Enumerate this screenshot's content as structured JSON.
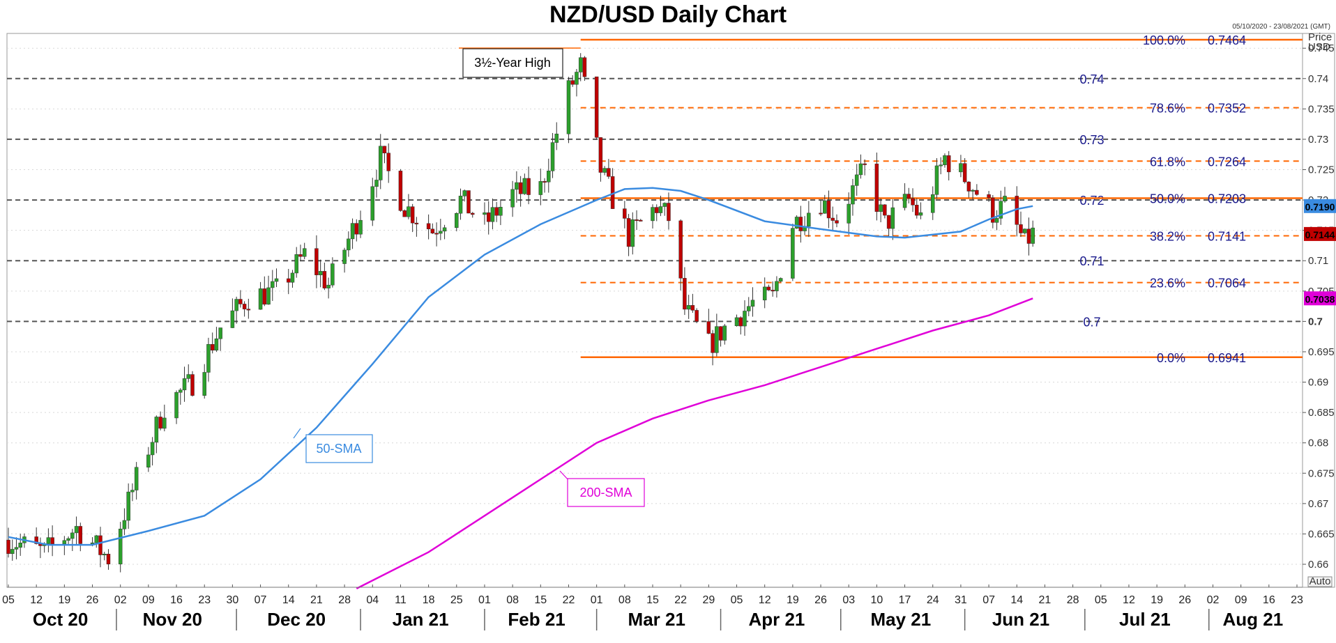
{
  "title": "NZD/USD Daily Chart",
  "date_range": "05/10/2020 - 23/08/2021 (GMT)",
  "axis_unit": [
    "Price",
    "USD"
  ],
  "auto_label": "Auto",
  "colors": {
    "up_candle": "#2ca02c",
    "down_candle": "#c00000",
    "sma50": "#3a8be0",
    "sma200": "#e000d8",
    "fib_line": "#ff6600",
    "level_line": "#555555",
    "level_text": "#1a1a8c"
  },
  "chart_data": {
    "type": "candlestick",
    "title": "NZD/USD Daily Chart",
    "ylim": [
      0.6565,
      0.7495
    ],
    "y_ticks": [
      0.66,
      0.665,
      0.67,
      0.675,
      0.68,
      0.685,
      0.69,
      0.695,
      0.7,
      0.705,
      0.71,
      0.715,
      0.72,
      0.725,
      0.73,
      0.735,
      0.74,
      0.745
    ],
    "y_tick_labels": [
      "0.66",
      "0.665",
      "0.67",
      "0.675",
      "0.68",
      "0.685",
      "0.69",
      "0.695",
      "0.7",
      "0.705",
      "0.71",
      "0.715",
      "0.72",
      "0.725",
      "0.73",
      "0.735",
      "0.74",
      "0.745"
    ],
    "x_range": [
      "2020-10-05",
      "2021-08-23"
    ],
    "day_ticks": [
      {
        "label": "05",
        "date": "2020-10-05"
      },
      {
        "label": "12",
        "date": "2020-10-12"
      },
      {
        "label": "19",
        "date": "2020-10-19"
      },
      {
        "label": "26",
        "date": "2020-10-26"
      },
      {
        "label": "02",
        "date": "2020-11-02"
      },
      {
        "label": "09",
        "date": "2020-11-09"
      },
      {
        "label": "16",
        "date": "2020-11-16"
      },
      {
        "label": "23",
        "date": "2020-11-23"
      },
      {
        "label": "30",
        "date": "2020-11-30"
      },
      {
        "label": "07",
        "date": "2020-12-07"
      },
      {
        "label": "14",
        "date": "2020-12-14"
      },
      {
        "label": "21",
        "date": "2020-12-21"
      },
      {
        "label": "28",
        "date": "2020-12-28"
      },
      {
        "label": "04",
        "date": "2021-01-04"
      },
      {
        "label": "11",
        "date": "2021-01-11"
      },
      {
        "label": "18",
        "date": "2021-01-18"
      },
      {
        "label": "25",
        "date": "2021-01-25"
      },
      {
        "label": "01",
        "date": "2021-02-01"
      },
      {
        "label": "08",
        "date": "2021-02-08"
      },
      {
        "label": "15",
        "date": "2021-02-15"
      },
      {
        "label": "22",
        "date": "2021-02-22"
      },
      {
        "label": "01",
        "date": "2021-03-01"
      },
      {
        "label": "08",
        "date": "2021-03-08"
      },
      {
        "label": "15",
        "date": "2021-03-15"
      },
      {
        "label": "22",
        "date": "2021-03-22"
      },
      {
        "label": "29",
        "date": "2021-03-29"
      },
      {
        "label": "05",
        "date": "2021-04-05"
      },
      {
        "label": "12",
        "date": "2021-04-12"
      },
      {
        "label": "19",
        "date": "2021-04-19"
      },
      {
        "label": "26",
        "date": "2021-04-26"
      },
      {
        "label": "03",
        "date": "2021-05-03"
      },
      {
        "label": "10",
        "date": "2021-05-10"
      },
      {
        "label": "17",
        "date": "2021-05-17"
      },
      {
        "label": "24",
        "date": "2021-05-24"
      },
      {
        "label": "31",
        "date": "2021-05-31"
      },
      {
        "label": "07",
        "date": "2021-06-07"
      },
      {
        "label": "14",
        "date": "2021-06-14"
      },
      {
        "label": "21",
        "date": "2021-06-21"
      },
      {
        "label": "28",
        "date": "2021-06-28"
      },
      {
        "label": "05",
        "date": "2021-07-05"
      },
      {
        "label": "12",
        "date": "2021-07-12"
      },
      {
        "label": "19",
        "date": "2021-07-19"
      },
      {
        "label": "26",
        "date": "2021-07-26"
      },
      {
        "label": "02",
        "date": "2021-08-02"
      },
      {
        "label": "09",
        "date": "2021-08-09"
      },
      {
        "label": "16",
        "date": "2021-08-16"
      },
      {
        "label": "23",
        "date": "2021-08-23"
      }
    ],
    "months": [
      {
        "label": "Oct 20",
        "date": "2020-10-18"
      },
      {
        "label": "Nov 20",
        "date": "2020-11-15"
      },
      {
        "label": "Dec 20",
        "date": "2020-12-16"
      },
      {
        "label": "Jan 21",
        "date": "2021-01-16"
      },
      {
        "label": "Feb 21",
        "date": "2021-02-14"
      },
      {
        "label": "Mar 21",
        "date": "2021-03-16"
      },
      {
        "label": "Apr 21",
        "date": "2021-04-15"
      },
      {
        "label": "May 21",
        "date": "2021-05-16"
      },
      {
        "label": "Jun 21",
        "date": "2021-06-15"
      },
      {
        "label": "Jul 21",
        "date": "2021-07-16"
      },
      {
        "label": "Aug 21",
        "date": "2021-08-12"
      }
    ],
    "month_separators": [
      "2020-11-01",
      "2020-12-01",
      "2021-01-01",
      "2021-02-01",
      "2021-03-01",
      "2021-04-01",
      "2021-05-01",
      "2021-06-01",
      "2021-07-01",
      "2021-08-01"
    ],
    "price_path": [
      [
        "2020-10-05",
        0.664
      ],
      [
        "2020-10-14",
        0.662
      ],
      [
        "2020-10-22",
        0.666
      ],
      [
        "2020-10-30",
        0.661
      ],
      [
        "2020-11-06",
        0.674
      ],
      [
        "2020-11-13",
        0.686
      ],
      [
        "2020-11-20",
        0.69
      ],
      [
        "2020-11-27",
        0.699
      ],
      [
        "2020-12-04",
        0.704
      ],
      [
        "2020-12-11",
        0.705
      ],
      [
        "2020-12-18",
        0.711
      ],
      [
        "2020-12-24",
        0.706
      ],
      [
        "2021-01-01",
        0.718
      ],
      [
        "2021-01-06",
        0.727
      ],
      [
        "2021-01-12",
        0.719
      ],
      [
        "2021-01-19",
        0.715
      ],
      [
        "2021-01-26",
        0.72
      ],
      [
        "2021-02-01",
        0.716
      ],
      [
        "2021-02-08",
        0.721
      ],
      [
        "2021-02-15",
        0.722
      ],
      [
        "2021-02-22",
        0.738
      ],
      [
        "2021-02-25",
        0.742
      ],
      [
        "2021-03-02",
        0.725
      ],
      [
        "2021-03-09",
        0.714
      ],
      [
        "2021-03-16",
        0.719
      ],
      [
        "2021-03-19",
        0.717
      ],
      [
        "2021-03-23",
        0.702
      ],
      [
        "2021-03-29",
        0.696
      ],
      [
        "2021-04-02",
        0.699
      ],
      [
        "2021-04-09",
        0.703
      ],
      [
        "2021-04-14",
        0.704
      ],
      [
        "2021-04-19",
        0.716
      ],
      [
        "2021-04-26",
        0.72
      ],
      [
        "2021-04-30",
        0.717
      ],
      [
        "2021-05-07",
        0.725
      ],
      [
        "2021-05-12",
        0.716
      ],
      [
        "2021-05-18",
        0.72
      ],
      [
        "2021-05-21",
        0.717
      ],
      [
        "2021-05-27",
        0.727
      ],
      [
        "2021-06-02",
        0.723
      ],
      [
        "2021-06-08",
        0.718
      ],
      [
        "2021-06-11",
        0.719
      ],
      [
        "2021-06-16",
        0.713
      ],
      [
        "2021-06-18",
        0.7144
      ]
    ],
    "series": [
      {
        "name": "50-SMA",
        "points": [
          [
            "2020-10-05",
            0.6645
          ],
          [
            "2020-10-15",
            0.6632
          ],
          [
            "2020-10-26",
            0.6632
          ],
          [
            "2020-11-09",
            0.6655
          ],
          [
            "2020-11-23",
            0.668
          ],
          [
            "2020-12-07",
            0.674
          ],
          [
            "2020-12-21",
            0.6825
          ],
          [
            "2021-01-04",
            0.693
          ],
          [
            "2021-01-18",
            0.704
          ],
          [
            "2021-02-01",
            0.711
          ],
          [
            "2021-02-15",
            0.716
          ],
          [
            "2021-03-01",
            0.72
          ],
          [
            "2021-03-08",
            0.7218
          ],
          [
            "2021-03-15",
            0.722
          ],
          [
            "2021-03-22",
            0.7215
          ],
          [
            "2021-03-29",
            0.72
          ],
          [
            "2021-04-12",
            0.7165
          ],
          [
            "2021-04-26",
            0.7152
          ],
          [
            "2021-05-10",
            0.714
          ],
          [
            "2021-05-17",
            0.7138
          ],
          [
            "2021-05-31",
            0.7148
          ],
          [
            "2021-06-07",
            0.7168
          ],
          [
            "2021-06-14",
            0.7185
          ],
          [
            "2021-06-18",
            0.719
          ]
        ]
      },
      {
        "name": "200-SMA",
        "points": [
          [
            "2020-12-31",
            0.656
          ],
          [
            "2021-01-18",
            0.662
          ],
          [
            "2021-02-01",
            0.668
          ],
          [
            "2021-02-15",
            0.674
          ],
          [
            "2021-03-01",
            0.68
          ],
          [
            "2021-03-15",
            0.684
          ],
          [
            "2021-03-29",
            0.687
          ],
          [
            "2021-04-12",
            0.6895
          ],
          [
            "2021-04-26",
            0.6925
          ],
          [
            "2021-05-10",
            0.6955
          ],
          [
            "2021-05-24",
            0.6985
          ],
          [
            "2021-06-07",
            0.701
          ],
          [
            "2021-06-18",
            0.7038
          ]
        ]
      }
    ],
    "fibonacci": [
      {
        "pct": "100.0%",
        "value": "0.7464",
        "level": 0.7464,
        "style": "solid"
      },
      {
        "pct": "78.6%",
        "value": "0.7352",
        "level": 0.7352,
        "style": "dashed"
      },
      {
        "pct": "61.8%",
        "value": "0.7264",
        "level": 0.7264,
        "style": "dashed"
      },
      {
        "pct": "50.0%",
        "value": "0.7203",
        "level": 0.7203,
        "style": "solid"
      },
      {
        "pct": "38.2%",
        "value": "0.7141",
        "level": 0.7141,
        "style": "dashed"
      },
      {
        "pct": "23.6%",
        "value": "0.7064",
        "level": 0.7064,
        "style": "dashed"
      },
      {
        "pct": "0.0%",
        "value": "0.6941",
        "level": 0.6941,
        "style": "solid"
      }
    ],
    "fib_start": "2021-02-25",
    "horizontal_levels": [
      {
        "label": "0.74",
        "level": 0.74
      },
      {
        "label": "0.73",
        "level": 0.73
      },
      {
        "label": "0.72",
        "level": 0.72
      },
      {
        "label": "0.71",
        "level": 0.71
      },
      {
        "label": "0.7",
        "level": 0.7
      }
    ],
    "price_tags": [
      {
        "label": "0.7190",
        "level": 0.719,
        "color": "#3a8be0"
      },
      {
        "label": "0.7144",
        "level": 0.7144,
        "color": "#c00000"
      },
      {
        "label": "0.7038",
        "level": 0.7038,
        "color": "#e000d8"
      }
    ],
    "annotations": [
      {
        "text": "3½-Year High",
        "color": "#000000"
      },
      {
        "text": "50-SMA",
        "color": "#3a8be0"
      },
      {
        "text": "200-SMA",
        "color": "#e000d8"
      }
    ]
  }
}
